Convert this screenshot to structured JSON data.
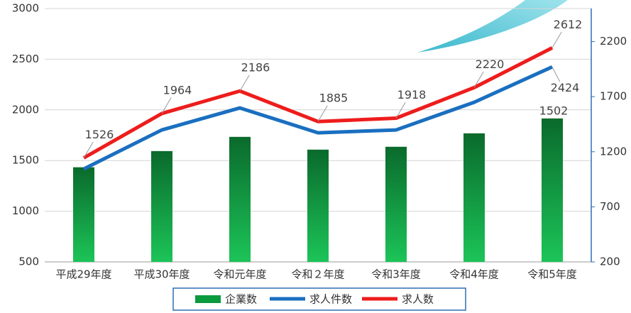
{
  "chart_data": {
    "type": "bar-line",
    "categories": [
      "平成29年度",
      "平成30年度",
      "令和元年度",
      "令和２年度",
      "令和3年度",
      "令和4年度",
      "令和5年度"
    ],
    "series": [
      {
        "name": "企業数",
        "type": "bar",
        "axis": "y2",
        "color": "#0b9a3e",
        "values": [
          1059,
          1206,
          1335,
          1219,
          1245,
          1367,
          1502
        ]
      },
      {
        "name": "求人件数",
        "type": "line",
        "color": "#1a6fc0",
        "values": [
          1417,
          1802,
          2019,
          1774,
          1802,
          2075,
          2424
        ]
      },
      {
        "name": "求人数",
        "type": "line",
        "color": "#ee1c1c",
        "values": [
          1526,
          1964,
          2186,
          1885,
          1918,
          2220,
          2612
        ]
      }
    ],
    "ylim": [
      500,
      3000
    ],
    "yticks": [
      500,
      1000,
      1500,
      2000,
      2500,
      3000
    ],
    "y2lim": [
      200,
      2500
    ],
    "y2ticks": [
      200,
      700,
      1200,
      1700,
      2200
    ],
    "grid": true
  }
}
